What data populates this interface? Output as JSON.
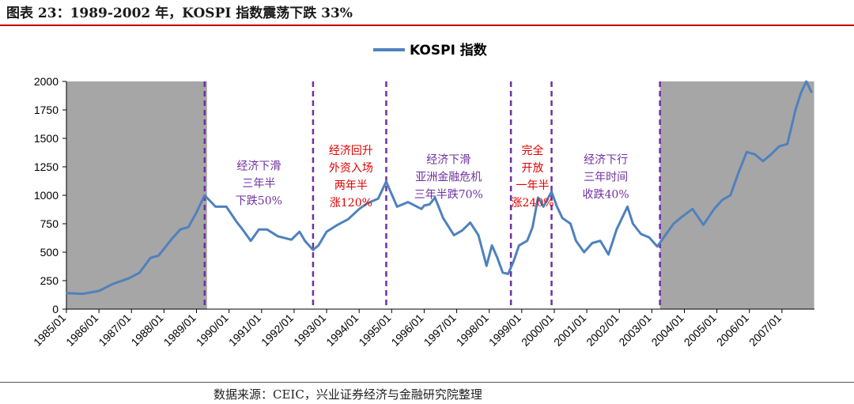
{
  "figure": {
    "title": "图表 23：1989-2002 年，KOSPI 指数震荡下跌 33%",
    "source": "数据来源：CEIC，兴业证券经济与金融研究院整理"
  },
  "colors": {
    "line": "#4f81bd",
    "shade": "#a6a6a6",
    "divider": "#7030a0",
    "annotation_purple": "#7030a0",
    "annotation_red": "#e00000",
    "title_rule": "#c00000"
  },
  "chart_data": {
    "type": "line",
    "title": "",
    "xlabel": "",
    "ylabel": "",
    "ylim": [
      0,
      2000
    ],
    "yticks": [
      0,
      250,
      500,
      750,
      1000,
      1250,
      1500,
      1750,
      2000
    ],
    "grid": false,
    "legend_position": "top-center",
    "x_tick_labels": [
      "1985/01",
      "1986/01",
      "1987/01",
      "1988/01",
      "1989/01",
      "1990/01",
      "1991/01",
      "1992/01",
      "1993/01",
      "1994/01",
      "1995/01",
      "1996/01",
      "1997/01",
      "1998/01",
      "1999/01",
      "2000/01",
      "2001/01",
      "2002/01",
      "2003/01",
      "2004/01",
      "2005/01",
      "2006/01",
      "2007/01"
    ],
    "series": [
      {
        "name": "KOSPI 指数",
        "points": [
          [
            "1985/01",
            140
          ],
          [
            "1985/07",
            135
          ],
          [
            "1986/01",
            160
          ],
          [
            "1986/06",
            220
          ],
          [
            "1986/12",
            270
          ],
          [
            "1987/04",
            320
          ],
          [
            "1987/08",
            450
          ],
          [
            "1987/11",
            470
          ],
          [
            "1988/01",
            530
          ],
          [
            "1988/04",
            620
          ],
          [
            "1988/07",
            700
          ],
          [
            "1988/10",
            720
          ],
          [
            "1989/01",
            850
          ],
          [
            "1989/04",
            1000
          ],
          [
            "1989/08",
            900
          ],
          [
            "1989/12",
            900
          ],
          [
            "1990/04",
            760
          ],
          [
            "1990/06",
            700
          ],
          [
            "1990/09",
            600
          ],
          [
            "1990/12",
            700
          ],
          [
            "1991/03",
            700
          ],
          [
            "1991/07",
            640
          ],
          [
            "1991/12",
            610
          ],
          [
            "1992/03",
            680
          ],
          [
            "1992/05",
            600
          ],
          [
            "1992/08",
            520
          ],
          [
            "1992/10",
            560
          ],
          [
            "1993/01",
            680
          ],
          [
            "1993/05",
            740
          ],
          [
            "1993/09",
            790
          ],
          [
            "1994/01",
            880
          ],
          [
            "1994/04",
            930
          ],
          [
            "1994/08",
            970
          ],
          [
            "1994/11",
            1120
          ],
          [
            "1995/01",
            1010
          ],
          [
            "1995/03",
            900
          ],
          [
            "1995/07",
            940
          ],
          [
            "1995/12",
            880
          ],
          [
            "1996/01",
            910
          ],
          [
            "1996/03",
            920
          ],
          [
            "1996/05",
            980
          ],
          [
            "1996/08",
            800
          ],
          [
            "1996/12",
            650
          ],
          [
            "1997/03",
            690
          ],
          [
            "1997/06",
            760
          ],
          [
            "1997/09",
            650
          ],
          [
            "1997/12",
            380
          ],
          [
            "1998/02",
            560
          ],
          [
            "1998/04",
            450
          ],
          [
            "1998/06",
            320
          ],
          [
            "1998/08",
            310
          ],
          [
            "1998/10",
            420
          ],
          [
            "1998/12",
            560
          ],
          [
            "1999/03",
            600
          ],
          [
            "1999/05",
            720
          ],
          [
            "1999/07",
            980
          ],
          [
            "1999/09",
            900
          ],
          [
            "1999/12",
            1030
          ],
          [
            "2000/02",
            900
          ],
          [
            "2000/04",
            800
          ],
          [
            "2000/07",
            750
          ],
          [
            "2000/09",
            600
          ],
          [
            "2000/12",
            500
          ],
          [
            "2001/03",
            580
          ],
          [
            "2001/06",
            600
          ],
          [
            "2001/09",
            480
          ],
          [
            "2001/12",
            700
          ],
          [
            "2002/04",
            900
          ],
          [
            "2002/06",
            750
          ],
          [
            "2002/09",
            660
          ],
          [
            "2002/12",
            630
          ],
          [
            "2003/03",
            550
          ],
          [
            "2003/06",
            650
          ],
          [
            "2003/09",
            750
          ],
          [
            "2003/12",
            810
          ],
          [
            "2004/04",
            880
          ],
          [
            "2004/08",
            740
          ],
          [
            "2004/12",
            880
          ],
          [
            "2005/03",
            960
          ],
          [
            "2005/06",
            1000
          ],
          [
            "2005/09",
            1200
          ],
          [
            "2005/12",
            1380
          ],
          [
            "2006/03",
            1360
          ],
          [
            "2006/06",
            1300
          ],
          [
            "2006/09",
            1360
          ],
          [
            "2006/12",
            1430
          ],
          [
            "2007/03",
            1450
          ],
          [
            "2007/06",
            1750
          ],
          [
            "2007/08",
            1900
          ],
          [
            "2007/10",
            2000
          ],
          [
            "2007/12",
            1900
          ]
        ]
      }
    ],
    "shaded_periods": [
      [
        "1985/01",
        "1989/04"
      ],
      [
        "2003/04",
        "2007/12"
      ]
    ],
    "dividers": [
      "1989/04",
      "1992/08",
      "1994/11",
      "1998/09",
      "1999/12",
      "2003/04"
    ],
    "annotations": [
      {
        "lines": [
          "经济下滑",
          "三年半",
          "下跌50%"
        ],
        "color": "purple",
        "x": "1990/12",
        "y": 1225
      },
      {
        "lines": [
          "经济回升",
          "外资入场",
          "两年半",
          "涨120%"
        ],
        "color": "red",
        "x": "1993/10",
        "y": 1360
      },
      {
        "lines": [
          "经济下滑",
          "亚洲金融危机",
          "三年半跌70%"
        ],
        "color": "purple",
        "x": "1996/10",
        "y": 1280
      },
      {
        "lines": [
          "完全",
          "开放",
          "一年半",
          "涨240%"
        ],
        "color": "red",
        "x": "1999/05",
        "y": 1360
      },
      {
        "lines": [
          "经济下行",
          "三年时间",
          "收跌40%"
        ],
        "color": "purple",
        "x": "2001/08",
        "y": 1280
      }
    ]
  }
}
